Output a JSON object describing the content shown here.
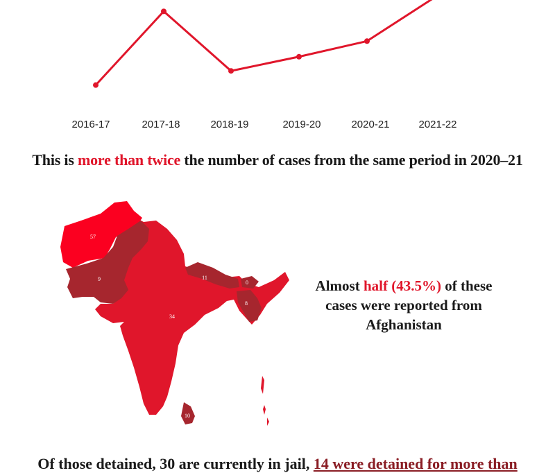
{
  "chart_data": {
    "type": "line",
    "categories": [
      "2016-17",
      "2017-18",
      "2018-19",
      "2019-20",
      "2020-21",
      "2021-22"
    ],
    "series": [
      {
        "values": [
          30,
          82,
          40,
          50,
          61,
          92
        ]
      }
    ],
    "ylim": [
      0,
      90
    ],
    "grid": false,
    "line_color": "#e0162b"
  },
  "headline": {
    "pre": "This is ",
    "highlight": "more than twice",
    "post": " the number of cases from the same period in 2020–21"
  },
  "map": {
    "fill_primary": "#e0162b",
    "fill_dark": "#a6262e",
    "fill_bright": "#fb0020",
    "regions": [
      {
        "name": "Afghanistan",
        "value": "57"
      },
      {
        "name": "Pakistan",
        "value": "9"
      },
      {
        "name": "India",
        "value": "34"
      },
      {
        "name": "Nepal",
        "value": "11"
      },
      {
        "name": "Bhutan",
        "value": "0"
      },
      {
        "name": "Bangladesh",
        "value": "8"
      },
      {
        "name": "Sri Lanka",
        "value": "10"
      }
    ]
  },
  "side_note": {
    "pre": "Almost ",
    "highlight": "half (43.5%)",
    "post": " of these cases were reported from Afghanistan"
  },
  "footer": {
    "pre": "Of those detained, 30 are currently in jail, ",
    "highlight": "14 were detained for more than"
  }
}
